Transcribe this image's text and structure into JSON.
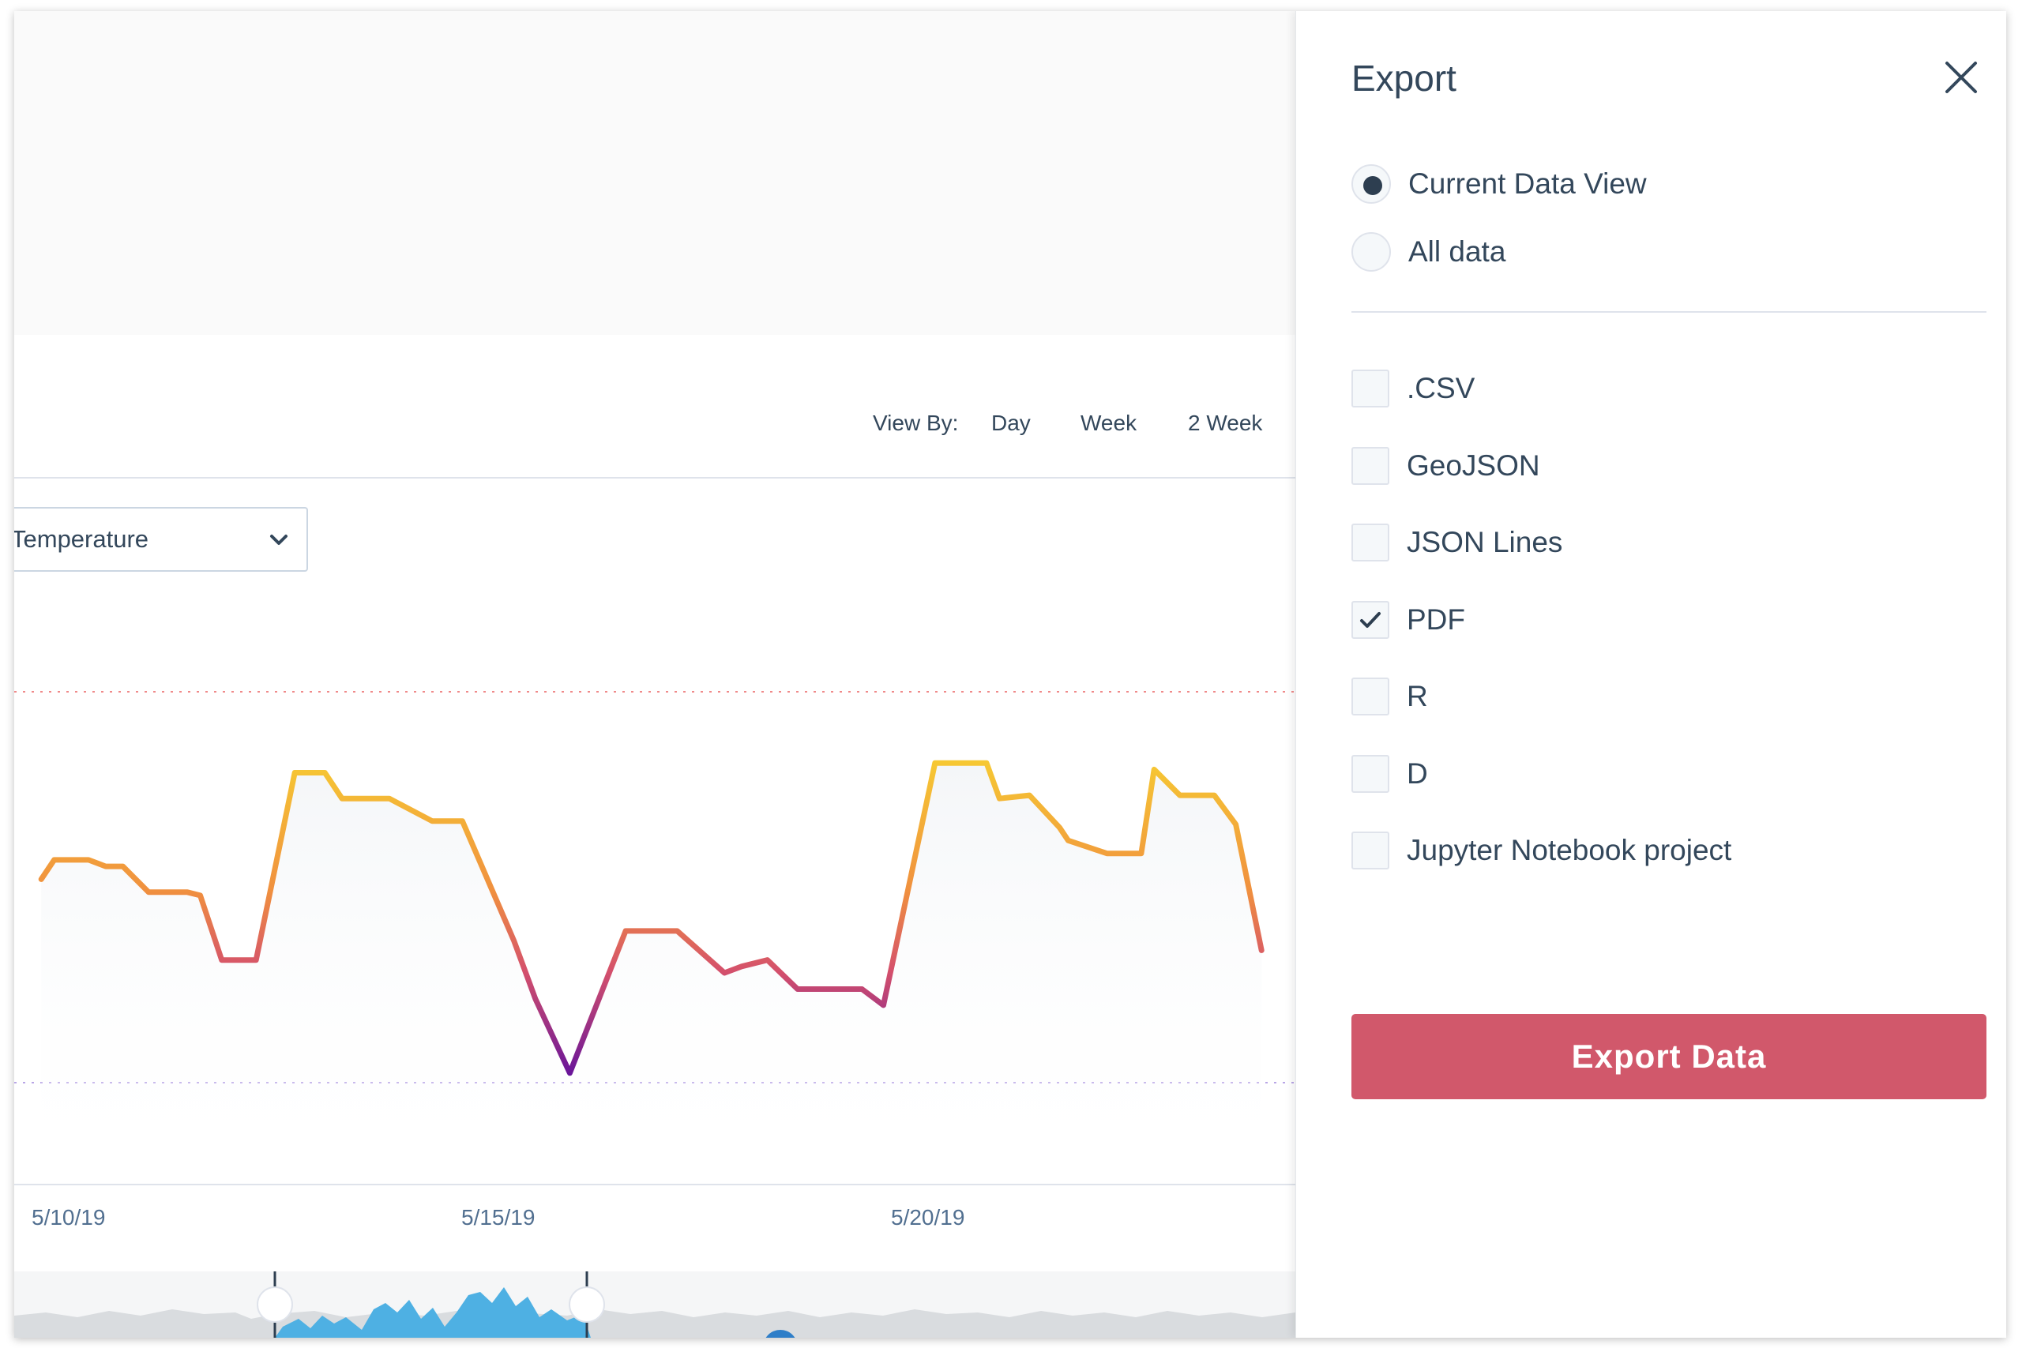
{
  "view_by": {
    "label": "View By:",
    "options": [
      "Day",
      "Week",
      "2 Week"
    ]
  },
  "metric_select": {
    "value": "Temperature"
  },
  "chart_data": {
    "type": "line",
    "title": "",
    "xlabel": "",
    "ylabel": "",
    "x_tick_labels": [
      "5/10/19",
      "5/15/19",
      "5/20/19"
    ],
    "series": [
      {
        "x": [
          9.8,
          9.95,
          10.35,
          10.55,
          10.75,
          11.05,
          11.5,
          11.65,
          11.9,
          12.3,
          12.75,
          13.1,
          13.3,
          13.85,
          14.35,
          14.7,
          15.3,
          15.55,
          15.95,
          16.6,
          16.85,
          17.2,
          17.75,
          17.95,
          18.25,
          18.6,
          19.35,
          19.6,
          20.2,
          20.8,
          20.95,
          21.3,
          21.65,
          21.75,
          22.2,
          22.6,
          22.75,
          23.05,
          23.45,
          23.7,
          24.0
        ]
      }
    ],
    "y_values_relative": [
      0.62,
      0.68,
      0.68,
      0.66,
      0.66,
      0.58,
      0.58,
      0.57,
      0.37,
      0.37,
      0.95,
      0.95,
      0.87,
      0.87,
      0.8,
      0.8,
      0.43,
      0.25,
      0.02,
      0.46,
      0.46,
      0.46,
      0.33,
      0.35,
      0.37,
      0.28,
      0.28,
      0.23,
      0.98,
      0.98,
      0.87,
      0.88,
      0.78,
      0.74,
      0.7,
      0.7,
      0.96,
      0.88,
      0.88,
      0.79,
      0.4
    ]
  }
}
